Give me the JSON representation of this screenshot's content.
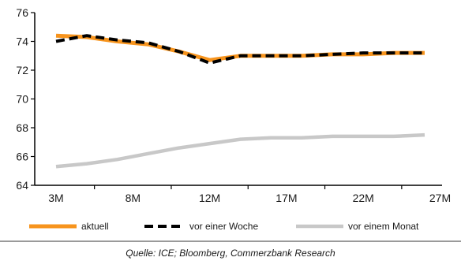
{
  "chart_data": {
    "type": "line",
    "categories": [
      "3M",
      "8M",
      "12M",
      "17M",
      "22M",
      "27M"
    ],
    "x": [
      "3M",
      "5M",
      "7M",
      "9M",
      "11M",
      "13M",
      "15M",
      "17M",
      "19M",
      "21M",
      "23M",
      "25M",
      "27M"
    ],
    "x_positions": [
      0,
      0.4,
      0.8,
      1.2,
      1.6,
      2.0,
      2.4,
      2.8,
      3.2,
      3.6,
      4.0,
      4.4,
      4.8
    ],
    "ylim": [
      64,
      76
    ],
    "yticks": [
      64,
      66,
      68,
      70,
      72,
      74,
      76
    ],
    "grid": false,
    "legend_position": "bottom",
    "series": [
      {
        "name": "aktuell",
        "color": "#f7941d",
        "style": "solid",
        "values": [
          74.4,
          74.3,
          74.0,
          73.8,
          73.3,
          72.7,
          73.0,
          73.0,
          73.0,
          73.1,
          73.1,
          73.2,
          73.2
        ]
      },
      {
        "name": "vor einer Woche",
        "color": "#000000",
        "style": "dashed",
        "values": [
          74.0,
          74.4,
          74.1,
          73.9,
          73.3,
          72.5,
          73.0,
          73.0,
          73.0,
          73.1,
          73.2,
          73.2,
          73.2
        ]
      },
      {
        "name": "vor einem Monat",
        "color": "#c8c8c8",
        "style": "solid",
        "values": [
          65.3,
          65.5,
          65.8,
          66.2,
          66.6,
          66.9,
          67.2,
          67.3,
          67.3,
          67.4,
          67.4,
          67.4,
          67.5
        ]
      }
    ],
    "source": "Quelle: ICE; Bloomberg, Commerzbank Research"
  }
}
